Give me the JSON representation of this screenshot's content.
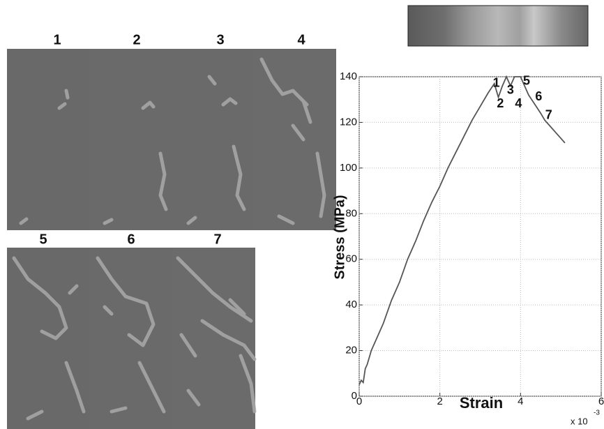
{
  "panel_labels": [
    "1",
    "2",
    "3",
    "4",
    "5",
    "6",
    "7"
  ],
  "chart_data": {
    "type": "line",
    "x_label": "Strain",
    "y_label": "Stress (MPa)",
    "x_multiplier": "x 10",
    "x_exponent": "-3",
    "x": [
      0,
      0.05,
      0.1,
      0.15,
      0.2,
      0.3,
      0.4,
      0.6,
      0.8,
      1.0,
      1.2,
      1.4,
      1.6,
      1.8,
      2.0,
      2.2,
      2.4,
      2.6,
      2.8,
      3.0,
      3.2,
      3.35,
      3.45,
      3.55,
      3.65,
      3.75,
      3.85,
      4.0,
      4.1,
      4.2,
      4.35,
      4.5,
      4.6,
      4.75,
      4.9,
      5.0,
      5.1
    ],
    "values": [
      5,
      7,
      6,
      12,
      14,
      20,
      24,
      32,
      42,
      50,
      60,
      68,
      77,
      85,
      92,
      100,
      107,
      114,
      121,
      127,
      133,
      137,
      131,
      136,
      140,
      136,
      140,
      140,
      136,
      132,
      128,
      124,
      121,
      118,
      115,
      113,
      111
    ],
    "color": "#555555",
    "annotations": [
      {
        "label": "1",
        "x": 3.4,
        "y": 137
      },
      {
        "label": "2",
        "x": 3.5,
        "y": 128
      },
      {
        "label": "3",
        "x": 3.75,
        "y": 134
      },
      {
        "label": "4",
        "x": 3.95,
        "y": 128
      },
      {
        "label": "5",
        "x": 4.15,
        "y": 138
      },
      {
        "label": "6",
        "x": 4.45,
        "y": 131
      },
      {
        "label": "7",
        "x": 4.7,
        "y": 123
      }
    ],
    "xlim": [
      0,
      6
    ],
    "ylim": [
      0,
      140
    ],
    "xticks": [
      0,
      2,
      4,
      6
    ],
    "yticks": [
      0,
      20,
      40,
      60,
      80,
      100,
      120,
      140
    ],
    "grid": true
  }
}
